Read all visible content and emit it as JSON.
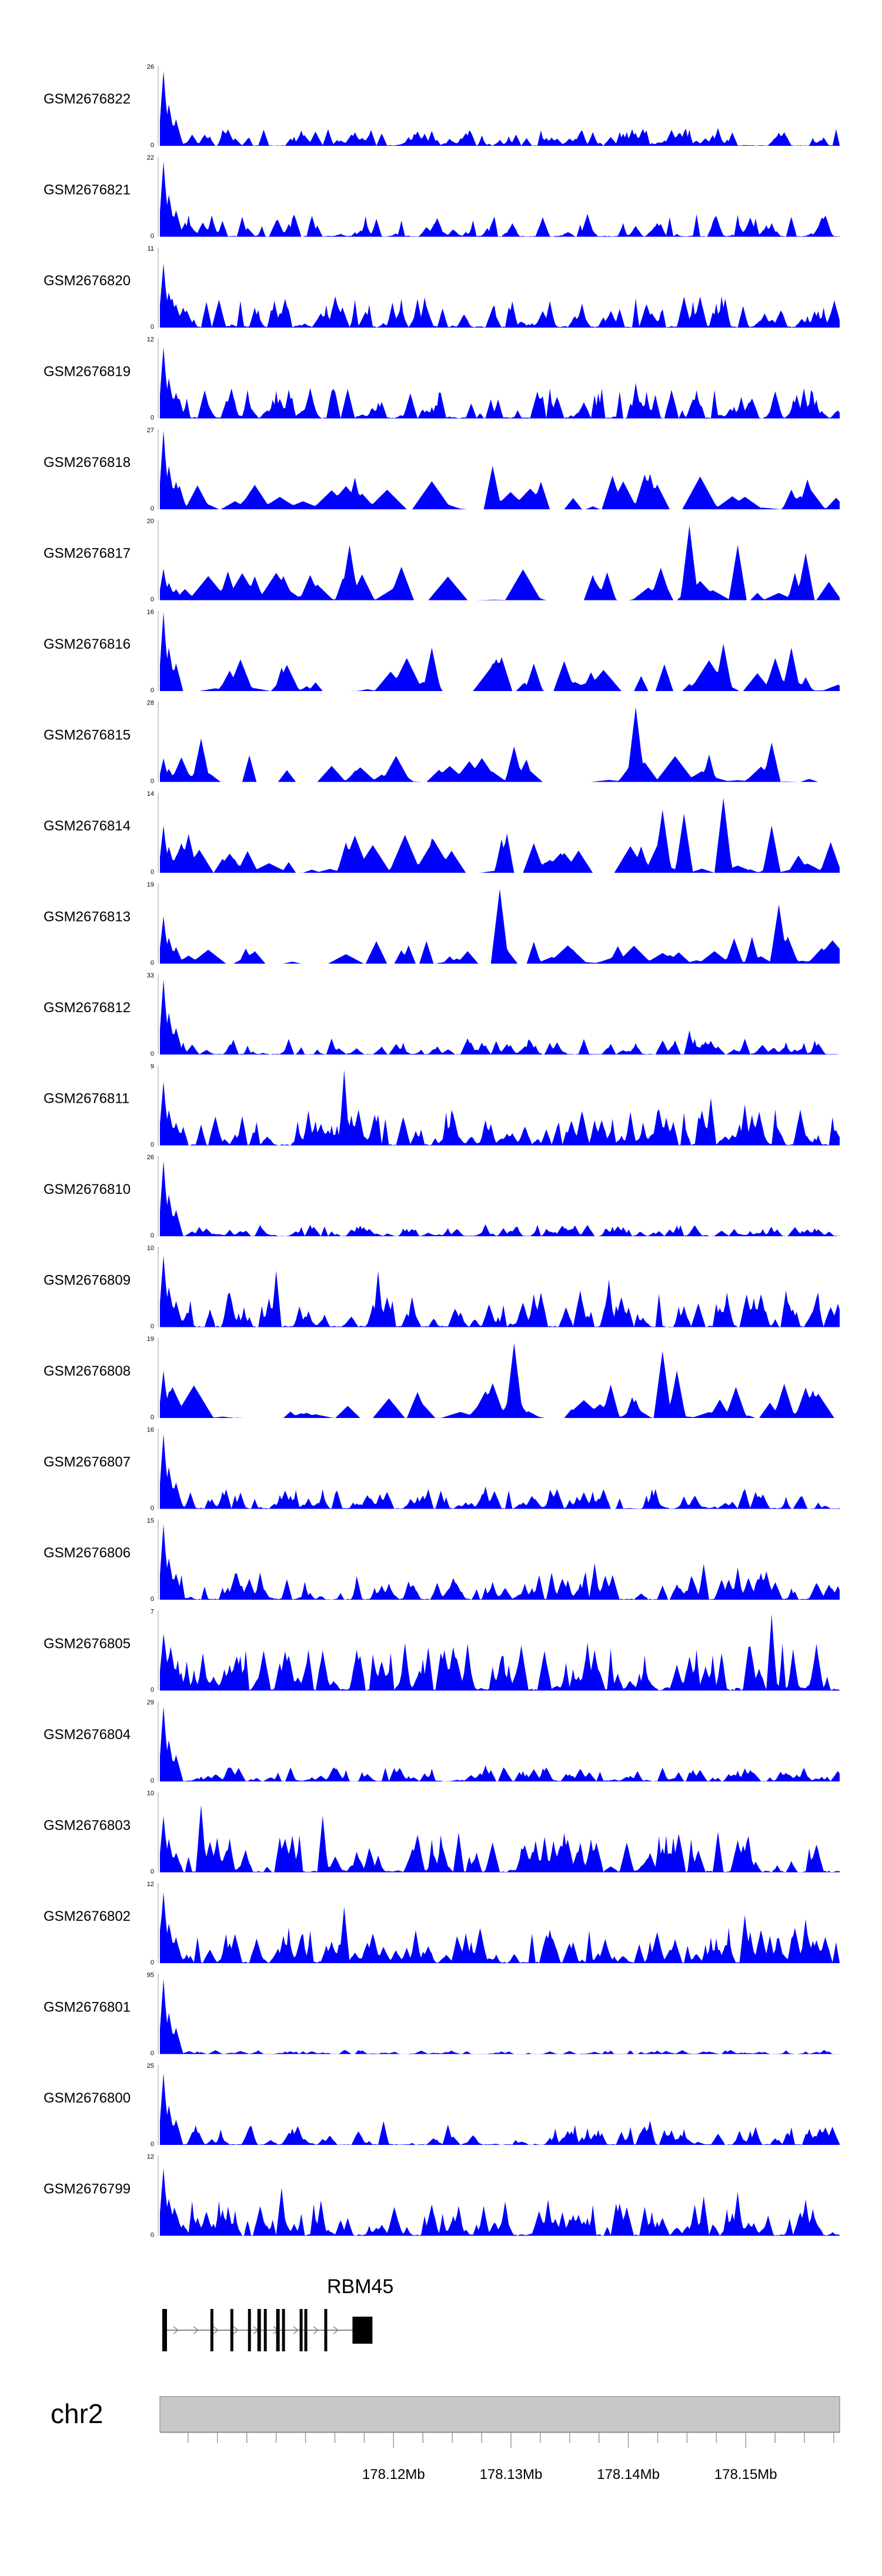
{
  "chart_data": {
    "type": "area",
    "title": "",
    "fill_color": "#0000ff",
    "x_range_bp": [
      178100100,
      178158000
    ],
    "tracks": [
      {
        "name": "GSM2676822",
        "ymin": 0,
        "ymax": 26,
        "seed": 11,
        "pattern": "dense",
        "head": 0.95,
        "scale": 0.22,
        "spikes": [
          [
            0.82,
            0.22
          ]
        ]
      },
      {
        "name": "GSM2676821",
        "ymin": 0,
        "ymax": 22,
        "seed": 12,
        "pattern": "dense",
        "head": 0.95,
        "scale": 0.28,
        "spikes": [
          [
            0.93,
            0.25
          ]
        ]
      },
      {
        "name": "GSM2676820",
        "ymin": 0,
        "ymax": 11,
        "seed": 13,
        "pattern": "dense",
        "head": 0.8,
        "scale": 0.4,
        "spikes": [
          [
            0.38,
            0.35
          ],
          [
            0.62,
            0.3
          ]
        ]
      },
      {
        "name": "GSM2676819",
        "ymin": 0,
        "ymax": 12,
        "seed": 14,
        "pattern": "dense",
        "head": 0.9,
        "scale": 0.38,
        "spikes": [
          [
            0.7,
            0.45
          ],
          [
            0.79,
            0.35
          ]
        ]
      },
      {
        "name": "GSM2676818",
        "ymin": 0,
        "ymax": 27,
        "seed": 15,
        "pattern": "sparse",
        "head": 1.0,
        "scale": 0.45,
        "spikes": [
          [
            0.49,
            0.55
          ],
          [
            0.56,
            0.35
          ],
          [
            0.72,
            0.45
          ],
          [
            0.93,
            0.25
          ]
        ]
      },
      {
        "name": "GSM2676817",
        "ymin": 0,
        "ymax": 20,
        "seed": 16,
        "pattern": "sparse",
        "head": 0.4,
        "scale": 0.45,
        "spikes": [
          [
            0.28,
            0.7
          ],
          [
            0.78,
            0.95
          ],
          [
            0.85,
            0.7
          ],
          [
            0.95,
            0.6
          ]
        ]
      },
      {
        "name": "GSM2676816",
        "ymin": 0,
        "ymax": 16,
        "seed": 17,
        "pattern": "sparse",
        "head": 1.0,
        "scale": 0.45,
        "spikes": [
          [
            0.4,
            0.55
          ],
          [
            0.55,
            0.35
          ],
          [
            0.83,
            0.6
          ],
          [
            0.93,
            0.55
          ]
        ]
      },
      {
        "name": "GSM2676815",
        "ymin": 0,
        "ymax": 28,
        "seed": 18,
        "pattern": "sparse",
        "head": 0.3,
        "scale": 0.35,
        "spikes": [
          [
            0.06,
            0.55
          ],
          [
            0.52,
            0.45
          ],
          [
            0.7,
            0.95
          ],
          [
            0.9,
            0.5
          ]
        ]
      },
      {
        "name": "GSM2676814",
        "ymin": 0,
        "ymax": 14,
        "seed": 19,
        "pattern": "sparse",
        "head": 0.6,
        "scale": 0.5,
        "spikes": [
          [
            0.74,
            0.8
          ],
          [
            0.77,
            0.75
          ],
          [
            0.83,
            0.95
          ],
          [
            0.9,
            0.6
          ]
        ]
      },
      {
        "name": "GSM2676813",
        "ymin": 0,
        "ymax": 19,
        "seed": 20,
        "pattern": "sparse",
        "head": 0.6,
        "scale": 0.35,
        "spikes": [
          [
            0.5,
            0.95
          ],
          [
            0.91,
            0.75
          ]
        ]
      },
      {
        "name": "GSM2676812",
        "ymin": 0,
        "ymax": 33,
        "seed": 21,
        "pattern": "dense",
        "head": 0.95,
        "scale": 0.2,
        "spikes": [
          [
            0.78,
            0.3
          ],
          [
            0.86,
            0.2
          ]
        ]
      },
      {
        "name": "GSM2676811",
        "ymin": 0,
        "ymax": 9,
        "seed": 22,
        "pattern": "dense",
        "head": 0.8,
        "scale": 0.45,
        "spikes": [
          [
            0.27,
            0.95
          ],
          [
            0.81,
            0.6
          ],
          [
            0.86,
            0.5
          ]
        ]
      },
      {
        "name": "GSM2676810",
        "ymin": 0,
        "ymax": 26,
        "seed": 23,
        "pattern": "dense",
        "head": 0.95,
        "scale": 0.15,
        "spikes": [
          [
            0.48,
            0.15
          ]
        ]
      },
      {
        "name": "GSM2676809",
        "ymin": 0,
        "ymax": 10,
        "seed": 24,
        "pattern": "dense",
        "head": 0.9,
        "scale": 0.45,
        "spikes": [
          [
            0.17,
            0.7
          ],
          [
            0.32,
            0.7
          ],
          [
            0.66,
            0.6
          ],
          [
            0.92,
            0.45
          ]
        ]
      },
      {
        "name": "GSM2676808",
        "ymin": 0,
        "ymax": 19,
        "seed": 25,
        "pattern": "sparse",
        "head": 0.6,
        "scale": 0.45,
        "spikes": [
          [
            0.52,
            0.95
          ],
          [
            0.74,
            0.85
          ],
          [
            0.76,
            0.6
          ],
          [
            0.96,
            0.35
          ]
        ]
      },
      {
        "name": "GSM2676807",
        "ymin": 0,
        "ymax": 16,
        "seed": 26,
        "pattern": "dense",
        "head": 0.95,
        "scale": 0.25,
        "spikes": [
          [
            0.48,
            0.28
          ],
          [
            0.86,
            0.25
          ]
        ]
      },
      {
        "name": "GSM2676806",
        "ymin": 0,
        "ymax": 15,
        "seed": 27,
        "pattern": "dense",
        "head": 0.95,
        "scale": 0.35,
        "spikes": [
          [
            0.64,
            0.45
          ],
          [
            0.8,
            0.45
          ],
          [
            0.85,
            0.4
          ]
        ]
      },
      {
        "name": "GSM2676805",
        "ymin": 0,
        "ymax": 7,
        "seed": 28,
        "pattern": "dense",
        "head": 0.7,
        "scale": 0.6,
        "spikes": [
          [
            0.9,
            0.95
          ],
          [
            0.36,
            0.6
          ],
          [
            0.63,
            0.6
          ]
        ]
      },
      {
        "name": "GSM2676804",
        "ymin": 0,
        "ymax": 29,
        "seed": 29,
        "pattern": "dense",
        "head": 0.95,
        "scale": 0.18,
        "spikes": [
          [
            0.48,
            0.2
          ]
        ]
      },
      {
        "name": "GSM2676803",
        "ymin": 0,
        "ymax": 10,
        "seed": 30,
        "pattern": "dense",
        "head": 0.7,
        "scale": 0.5,
        "spikes": [
          [
            0.06,
            0.85
          ],
          [
            0.24,
            0.7
          ],
          [
            0.82,
            0.5
          ]
        ]
      },
      {
        "name": "GSM2676802",
        "ymin": 0,
        "ymax": 12,
        "seed": 31,
        "pattern": "dense",
        "head": 0.9,
        "scale": 0.45,
        "spikes": [
          [
            0.27,
            0.7
          ],
          [
            0.86,
            0.6
          ],
          [
            0.95,
            0.55
          ]
        ]
      },
      {
        "name": "GSM2676801",
        "ymin": 0,
        "ymax": 95,
        "seed": 32,
        "pattern": "dense",
        "head": 0.95,
        "scale": 0.05,
        "spikes": []
      },
      {
        "name": "GSM2676800",
        "ymin": 0,
        "ymax": 25,
        "seed": 33,
        "pattern": "dense",
        "head": 0.9,
        "scale": 0.25,
        "spikes": [
          [
            0.33,
            0.3
          ],
          [
            0.72,
            0.3
          ]
        ]
      },
      {
        "name": "GSM2676799",
        "ymin": 0,
        "ymax": 12,
        "seed": 34,
        "pattern": "dense",
        "head": 0.85,
        "scale": 0.45,
        "spikes": [
          [
            0.18,
            0.6
          ],
          [
            0.57,
            0.45
          ],
          [
            0.8,
            0.5
          ],
          [
            0.85,
            0.55
          ]
        ]
      }
    ],
    "gene": {
      "name": "RBM45",
      "strand": "+",
      "start": 178100300,
      "end": 178118200,
      "exons": [
        [
          178100300,
          178100700
        ],
        [
          178104400,
          178104600
        ],
        [
          178106100,
          178106300
        ],
        [
          178107600,
          178107800
        ],
        [
          178108400,
          178108700
        ],
        [
          178108950,
          178109150
        ],
        [
          178110000,
          178110300
        ],
        [
          178110500,
          178110700
        ],
        [
          178112000,
          178112200
        ],
        [
          178112400,
          178112600
        ],
        [
          178114100,
          178114300
        ],
        [
          178116500,
          178118200
        ]
      ]
    },
    "chromosome": "chr2",
    "x_ticks": [
      178120000,
      178130000,
      178140000,
      178150000
    ],
    "x_tick_labels": [
      "178.12Mb",
      "178.13Mb",
      "178.14Mb",
      "178.15Mb"
    ]
  }
}
